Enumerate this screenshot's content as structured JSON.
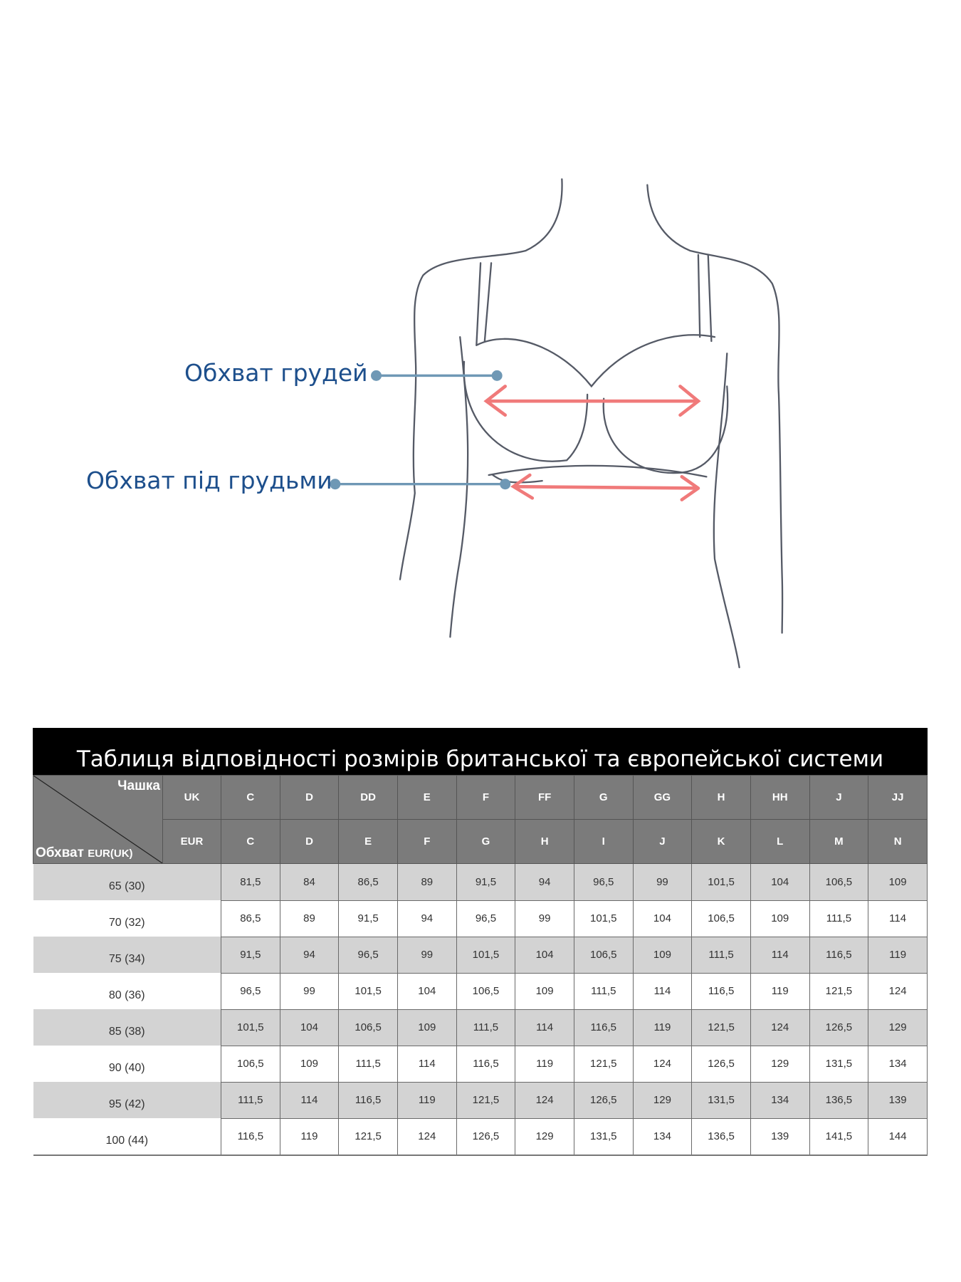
{
  "diagram": {
    "labels": {
      "bust": "Обхват грудей",
      "underbust": "Обхват під грудьми"
    },
    "colors": {
      "label_text": "#1d4f8c",
      "pointer": "#6f98b5",
      "arrow": "#f07a7a",
      "outline": "#555a66"
    }
  },
  "table": {
    "title": "Таблиця відповідності розмірів британської та європейської системи",
    "corner_top": "Чашка",
    "corner_bottom_main": "Обхват",
    "corner_bottom_sub": "EUR(UK)",
    "uk_label": "UK",
    "eur_label": "EUR",
    "uk_cups": [
      "C",
      "D",
      "DD",
      "E",
      "F",
      "FF",
      "G",
      "GG",
      "H",
      "HH",
      "J",
      "JJ"
    ],
    "eur_cups": [
      "C",
      "D",
      "E",
      "F",
      "G",
      "H",
      "I",
      "J",
      "K",
      "L",
      "M",
      "N"
    ],
    "rows": [
      {
        "band": "65 (30)",
        "values": [
          "81,5",
          "84",
          "86,5",
          "89",
          "91,5",
          "94",
          "96,5",
          "99",
          "101,5",
          "104",
          "106,5",
          "109"
        ]
      },
      {
        "band": "70 (32)",
        "values": [
          "86,5",
          "89",
          "91,5",
          "94",
          "96,5",
          "99",
          "101,5",
          "104",
          "106,5",
          "109",
          "111,5",
          "114"
        ]
      },
      {
        "band": "75 (34)",
        "values": [
          "91,5",
          "94",
          "96,5",
          "99",
          "101,5",
          "104",
          "106,5",
          "109",
          "111,5",
          "114",
          "116,5",
          "119"
        ]
      },
      {
        "band": "80 (36)",
        "values": [
          "96,5",
          "99",
          "101,5",
          "104",
          "106,5",
          "109",
          "111,5",
          "114",
          "116,5",
          "119",
          "121,5",
          "124"
        ]
      },
      {
        "band": "85 (38)",
        "values": [
          "101,5",
          "104",
          "106,5",
          "109",
          "111,5",
          "114",
          "116,5",
          "119",
          "121,5",
          "124",
          "126,5",
          "129"
        ]
      },
      {
        "band": "90 (40)",
        "values": [
          "106,5",
          "109",
          "111,5",
          "114",
          "116,5",
          "119",
          "121,5",
          "124",
          "126,5",
          "129",
          "131,5",
          "134"
        ]
      },
      {
        "band": "95 (42)",
        "values": [
          "111,5",
          "114",
          "116,5",
          "119",
          "121,5",
          "124",
          "126,5",
          "129",
          "131,5",
          "134",
          "136,5",
          "139"
        ]
      },
      {
        "band": "100 (44)",
        "values": [
          "116,5",
          "119",
          "121,5",
          "124",
          "126,5",
          "129",
          "131,5",
          "134",
          "136,5",
          "139",
          "141,5",
          "144"
        ]
      }
    ]
  }
}
